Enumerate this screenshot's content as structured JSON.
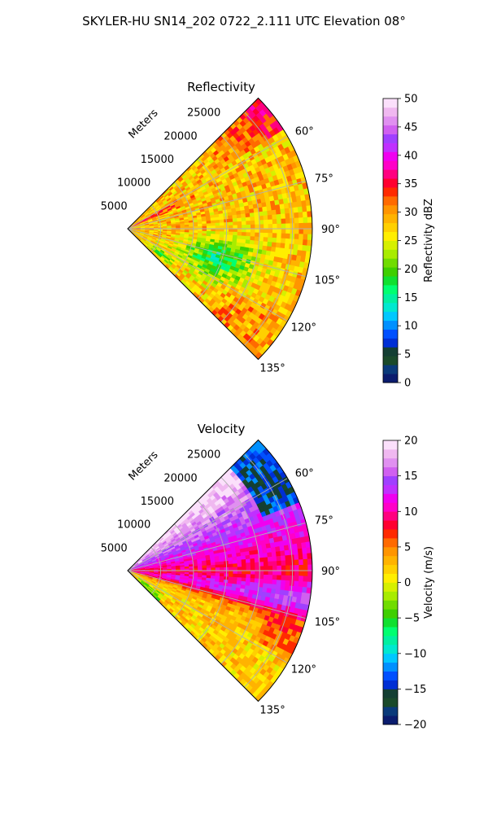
{
  "figure_title": "SKYLER-HU  SN14_202  0722_2.111 UTC Elevation 08°",
  "chart_data": [
    {
      "type": "heatmap",
      "projection": "polar-sector",
      "title": "Reflectivity",
      "range_label": "Meters",
      "range_ticks": [
        "5000",
        "10000",
        "15000",
        "20000",
        "25000"
      ],
      "range_values": [
        5000,
        10000,
        15000,
        20000,
        25000
      ],
      "rmax": 28000,
      "theta_range_deg": [
        45,
        135
      ],
      "theta_ticks": [
        "60°",
        "75°",
        "90°",
        "105°",
        "120°",
        "135°"
      ],
      "theta_values": [
        60,
        75,
        90,
        105,
        120,
        135
      ],
      "grid": true,
      "colorbar": {
        "label": "Reflectivity dBZ",
        "vmin": 0,
        "vmax": 50,
        "ticks": [
          "0",
          "5",
          "10",
          "15",
          "20",
          "25",
          "30",
          "35",
          "40",
          "45",
          "50"
        ],
        "tick_values": [
          0,
          5,
          10,
          15,
          20,
          25,
          30,
          35,
          40,
          45,
          50
        ],
        "colors": [
          "#0b1c6e",
          "#0a3a7a",
          "#1a4a2a",
          "#143f33",
          "#002fd4",
          "#0050ff",
          "#0090ff",
          "#00c8ff",
          "#00e8d0",
          "#00f0a0",
          "#00ff70",
          "#10e030",
          "#3ecf00",
          "#70dc00",
          "#a8ec00",
          "#d6f000",
          "#ffee00",
          "#ffd000",
          "#ffb300",
          "#ff9500",
          "#ff6a00",
          "#ff2a00",
          "#ff0030",
          "#ff0080",
          "#ff00c8",
          "#f000f0",
          "#c030ff",
          "#a040ff",
          "#d060f0",
          "#e090f0",
          "#f0b8f0",
          "#fbe0fb"
        ]
      }
    },
    {
      "type": "heatmap",
      "projection": "polar-sector",
      "title": "Velocity",
      "range_label": "Meters",
      "range_ticks": [
        "5000",
        "10000",
        "15000",
        "20000",
        "25000"
      ],
      "range_values": [
        5000,
        10000,
        15000,
        20000,
        25000
      ],
      "rmax": 28000,
      "theta_range_deg": [
        45,
        135
      ],
      "theta_ticks": [
        "60°",
        "75°",
        "90°",
        "105°",
        "120°",
        "135°"
      ],
      "theta_values": [
        60,
        75,
        90,
        105,
        120,
        135
      ],
      "grid": true,
      "colorbar": {
        "label": "Velocity (m/s)",
        "vmin": -20,
        "vmax": 20,
        "ticks": [
          "−20",
          "−15",
          "−10",
          "−5",
          "0",
          "5",
          "10",
          "15",
          "20"
        ],
        "tick_values": [
          -20,
          -15,
          -10,
          -5,
          0,
          5,
          10,
          15,
          20
        ],
        "colors": [
          "#0b1c6e",
          "#0a3a7a",
          "#1a4a2a",
          "#143f33",
          "#002fd4",
          "#0050ff",
          "#0090ff",
          "#00c8ff",
          "#00e8d0",
          "#00f0a0",
          "#00ff70",
          "#10e030",
          "#3ecf00",
          "#70dc00",
          "#a8ec00",
          "#d6f000",
          "#ffee00",
          "#ffd000",
          "#ffb300",
          "#ff9500",
          "#ff6a00",
          "#ff2a00",
          "#ff0030",
          "#ff0080",
          "#ff00c8",
          "#f000f0",
          "#c030ff",
          "#a040ff",
          "#d060f0",
          "#e090f0",
          "#f0b8f0",
          "#fbe0fb"
        ]
      }
    }
  ]
}
